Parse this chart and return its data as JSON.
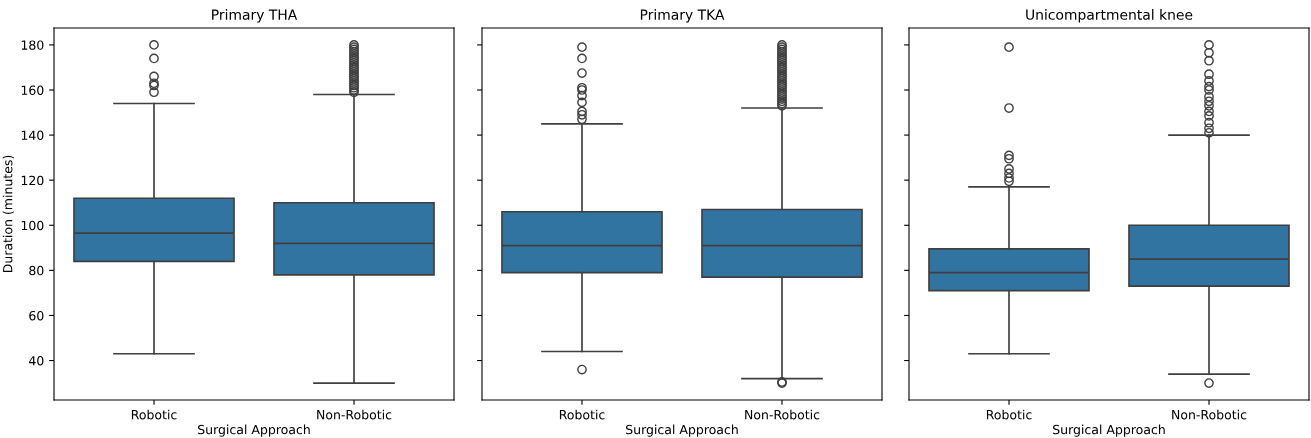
{
  "chart_data": [
    {
      "type": "box",
      "title": "Primary THA",
      "xlabel": "Surgical Approach",
      "ylabel": "Duration (minutes)",
      "categories": [
        "Robotic",
        "Non-Robotic"
      ],
      "color": "#3274a1",
      "ylim": [
        22.5,
        187.5
      ],
      "yticks": [
        40,
        60,
        80,
        100,
        120,
        140,
        160,
        180
      ],
      "boxes": [
        {
          "low": 43,
          "q1": 84,
          "median": 96.5,
          "q3": 112,
          "high": 154,
          "outliers": [
            180,
            174,
            166,
            163,
            162,
            159
          ]
        },
        {
          "low": 30,
          "q1": 78,
          "median": 92,
          "q3": 110,
          "high": 158,
          "outliers": [
            159,
            160,
            161,
            162,
            163,
            164,
            165,
            166,
            167,
            168,
            169,
            170,
            171,
            172,
            173,
            174,
            175,
            176,
            177,
            178,
            179,
            180
          ]
        }
      ]
    },
    {
      "type": "box",
      "title": "Primary TKA",
      "xlabel": "Surgical Approach",
      "categories": [
        "Robotic",
        "Non-Robotic"
      ],
      "color": "#3274a1",
      "ylim": [
        22.5,
        187.5
      ],
      "yticks": [
        40,
        60,
        80,
        100,
        120,
        140,
        160,
        180
      ],
      "tick_labels": "x",
      "boxes": [
        {
          "low": 44,
          "q1": 79,
          "median": 91,
          "q3": 106,
          "high": 145,
          "outliers": [
            179,
            174,
            167.5,
            161,
            160,
            157.5,
            154.5,
            150.5,
            149,
            147,
            36
          ]
        },
        {
          "low": 32,
          "q1": 77,
          "median": 91,
          "q3": 107,
          "high": 152,
          "outliers": [
            153,
            154,
            155,
            156,
            157,
            158,
            159,
            160,
            161,
            162,
            163,
            164,
            165,
            166,
            167,
            168,
            169,
            170,
            171,
            172,
            173,
            174,
            175,
            176,
            177,
            178,
            179,
            180,
            30.5,
            30
          ]
        }
      ]
    },
    {
      "type": "box",
      "title": "Unicompartmental knee",
      "xlabel": "Surgical Approach",
      "categories": [
        "Robotic",
        "Non-Robotic"
      ],
      "color": "#3274a1",
      "ylim": [
        22.5,
        187.5
      ],
      "yticks": [
        40,
        60,
        80,
        100,
        120,
        140,
        160,
        180
      ],
      "tick_labels": "x",
      "boxes": [
        {
          "low": 43,
          "q1": 71,
          "median": 79,
          "q3": 89.5,
          "high": 117,
          "outliers": [
            179,
            152,
            131,
            129.5,
            125,
            123,
            121,
            119.5
          ]
        },
        {
          "low": 34,
          "q1": 73,
          "median": 85,
          "q3": 100,
          "high": 140,
          "outliers": [
            180,
            176.5,
            173,
            167,
            164,
            161.5,
            160,
            157,
            155,
            153,
            150.5,
            148.5,
            145.5,
            143,
            141,
            30
          ]
        }
      ]
    }
  ]
}
